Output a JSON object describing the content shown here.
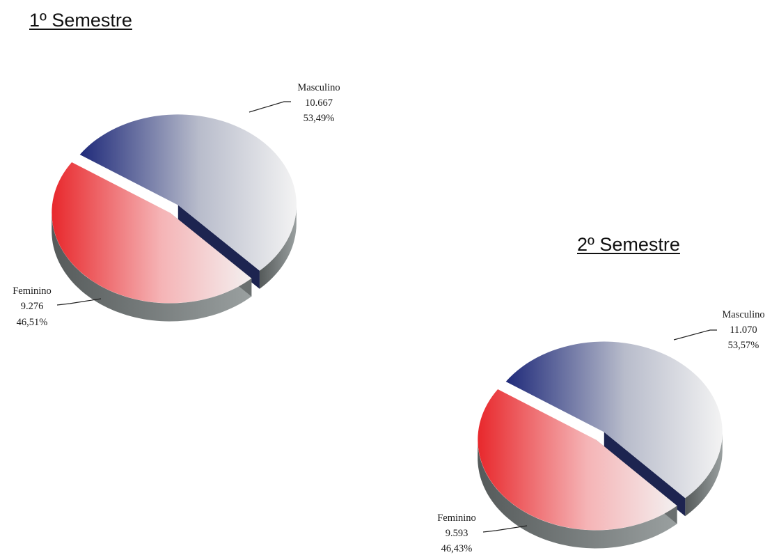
{
  "chart_data": [
    {
      "type": "pie",
      "title": "1º Semestre",
      "slices": [
        {
          "label": "Masculino",
          "value": 10667,
          "value_text": "10.667",
          "percent_text": "53,49%",
          "color_dark": "#1f2a7a",
          "color_light": "#f2f2f2"
        },
        {
          "label": "Feminino",
          "value": 9276,
          "value_text": "9.276",
          "percent_text": "46,51%",
          "color_dark": "#e8282c",
          "color_light": "#f4f0f0"
        }
      ],
      "style": "3d-exploded"
    },
    {
      "type": "pie",
      "title": "2º Semestre",
      "slices": [
        {
          "label": "Masculino",
          "value": 11070,
          "value_text": "11.070",
          "percent_text": "53,57%",
          "color_dark": "#1f2a7a",
          "color_light": "#f2f2f2"
        },
        {
          "label": "Feminino",
          "value": 9593,
          "value_text": "9.593",
          "percent_text": "46,43%",
          "color_dark": "#e8282c",
          "color_light": "#f4f0f0"
        }
      ],
      "style": "3d-exploded"
    }
  ]
}
